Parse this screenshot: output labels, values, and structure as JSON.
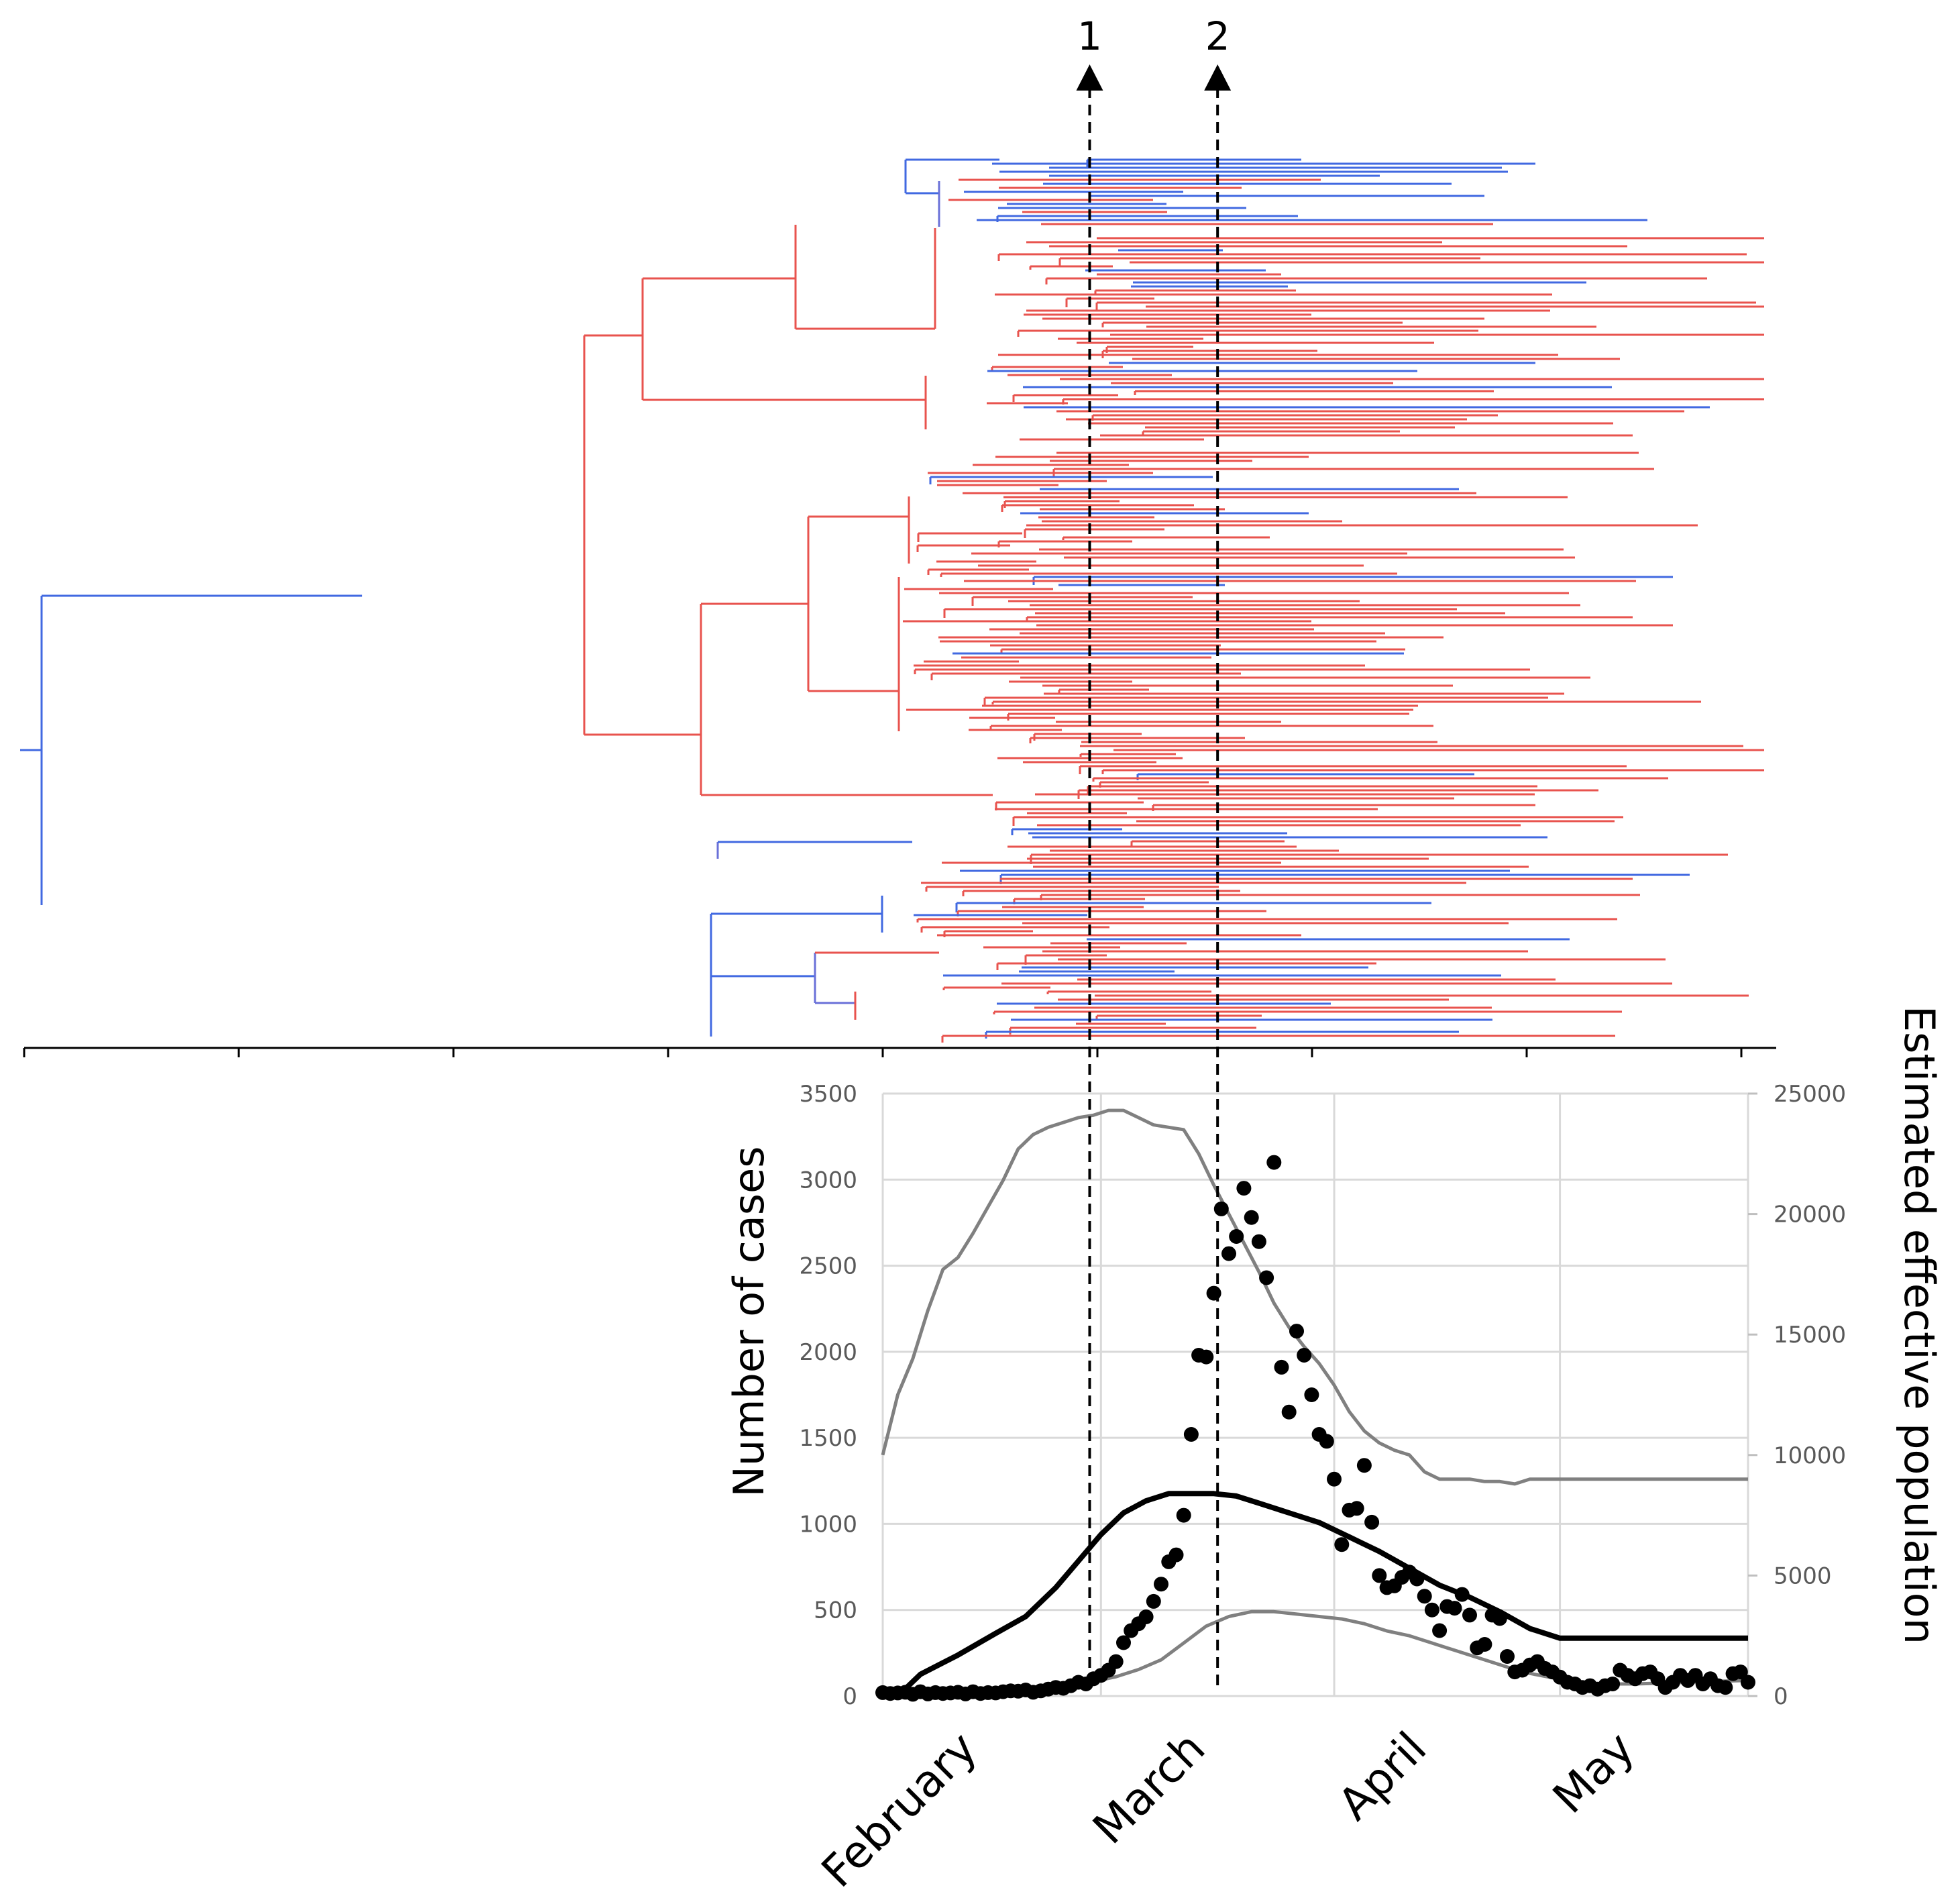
{
  "markers": [
    {
      "label": "1",
      "date": 27.5
    },
    {
      "label": "2",
      "date": 44.5
    }
  ],
  "chart_data": {
    "type": "scatter",
    "title": "",
    "xlabel": "",
    "ylabel": "Number of cases",
    "y2label": "Estimated effective population",
    "month_labels": [
      "February",
      "March",
      "April",
      "May"
    ],
    "month_starts": [
      0,
      29,
      60,
      90
    ],
    "x_unit": "days since 1 February",
    "xlim": [
      0,
      115
    ],
    "ylim": [
      0,
      3500
    ],
    "y2lim": [
      0,
      25000
    ],
    "y_ticks": [
      0,
      500,
      1000,
      1500,
      2000,
      2500,
      3000,
      3500
    ],
    "y2_ticks": [
      0,
      5000,
      10000,
      15000,
      20000,
      25000
    ],
    "grid": true,
    "series": [
      {
        "name": "Number of cases",
        "kind": "scatter",
        "axis": "left",
        "color": "#000000",
        "x": [
          0,
          1,
          2,
          3,
          4,
          5,
          6,
          7,
          8,
          9,
          10,
          11,
          12,
          13,
          14,
          15,
          16,
          17,
          18,
          19,
          20,
          21,
          22,
          23,
          24,
          25,
          26,
          27,
          28,
          29,
          30,
          31,
          32,
          33,
          34,
          35,
          36,
          37,
          38,
          39,
          40,
          41,
          42,
          43,
          44,
          45,
          46,
          47,
          48,
          49,
          50,
          51,
          52,
          53,
          54,
          55,
          56,
          57,
          58,
          59,
          60,
          61,
          62,
          63,
          64,
          65,
          66,
          67,
          68,
          69,
          70,
          71,
          72,
          73,
          74,
          75,
          76,
          77,
          78,
          79,
          80,
          81,
          82,
          83,
          84,
          85,
          86,
          87,
          88,
          89,
          90,
          91,
          92,
          93,
          94,
          95,
          96,
          97,
          98,
          99,
          100,
          101,
          102,
          103,
          104,
          105,
          106,
          107,
          108,
          109,
          110,
          111,
          112,
          113,
          114,
          115
        ],
        "values": [
          20,
          15,
          18,
          22,
          10,
          25,
          12,
          20,
          15,
          18,
          22,
          12,
          25,
          15,
          20,
          18,
          25,
          30,
          28,
          35,
          22,
          30,
          40,
          50,
          45,
          60,
          80,
          70,
          100,
          120,
          150,
          200,
          310,
          380,
          420,
          460,
          550,
          650,
          780,
          820,
          1050,
          1520,
          1980,
          1970,
          2340,
          2830,
          2570,
          2670,
          2950,
          2780,
          2640,
          2430,
          3100,
          1910,
          1650,
          2120,
          1980,
          1750,
          1520,
          1480,
          1260,
          880,
          1080,
          1090,
          1340,
          1010,
          700,
          630,
          640,
          690,
          720,
          680,
          580,
          500,
          380,
          520,
          510,
          590,
          470,
          280,
          300,
          470,
          450,
          230,
          140,
          150,
          180,
          200,
          160,
          140,
          110,
          80,
          70,
          50,
          60,
          40,
          60,
          70,
          150,
          120,
          100,
          130,
          140,
          100,
          50,
          80,
          120,
          90,
          120,
          70,
          100,
          60,
          50,
          130,
          140,
          80
        ]
      },
      {
        "name": "Estimated effective population (mean)",
        "kind": "line",
        "axis": "right",
        "color": "#000000",
        "x": [
          0,
          3,
          5,
          10,
          15,
          19,
          23,
          26,
          29,
          32,
          35,
          38,
          41,
          44,
          47,
          50,
          54,
          58,
          62,
          66,
          70,
          74,
          78,
          82,
          86,
          90,
          95,
          100,
          105,
          110,
          115
        ],
        "values": [
          150,
          300,
          900,
          1700,
          2600,
          3300,
          4500,
          5600,
          6700,
          7600,
          8100,
          8400,
          8400,
          8400,
          8300,
          8000,
          7600,
          7200,
          6600,
          6000,
          5300,
          4600,
          4100,
          3500,
          2800,
          2400,
          2400,
          2400,
          2400,
          2400,
          2400
        ]
      },
      {
        "name": "Estimated effective population (upper bound)",
        "kind": "line",
        "axis": "right",
        "color": "#808080",
        "x": [
          0,
          2,
          4,
          6,
          8,
          10,
          12,
          14,
          16,
          18,
          20,
          22,
          24,
          26,
          28,
          30,
          32,
          34,
          36,
          38,
          40,
          42,
          44,
          46,
          48,
          50,
          52,
          54,
          56,
          58,
          60,
          62,
          64,
          66,
          68,
          70,
          72,
          74,
          76,
          78,
          80,
          82,
          84,
          86,
          88,
          90,
          92,
          94,
          96,
          98,
          100,
          102,
          104,
          106,
          108,
          110,
          112,
          115
        ],
        "values": [
          10000,
          12500,
          14000,
          16000,
          17700,
          18200,
          19200,
          20300,
          21400,
          22700,
          23300,
          23600,
          23800,
          24000,
          24100,
          24300,
          24300,
          24000,
          23700,
          23600,
          23500,
          22500,
          21200,
          20000,
          18800,
          17600,
          16300,
          15300,
          14500,
          13800,
          12900,
          11800,
          11000,
          10500,
          10200,
          10000,
          9300,
          9000,
          9000,
          9000,
          8900,
          8900,
          8800,
          9000,
          9000,
          9000,
          9000,
          9000,
          9000,
          9000,
          9000,
          9000,
          9000,
          9000,
          9000,
          9000,
          9000,
          9000
        ]
      },
      {
        "name": "Estimated effective population (lower bound)",
        "kind": "line",
        "axis": "right",
        "color": "#808080",
        "x": [
          0,
          5,
          10,
          15,
          20,
          25,
          28,
          31,
          34,
          37,
          40,
          43,
          46,
          49,
          52,
          55,
          58,
          61,
          64,
          67,
          70,
          73,
          76,
          79,
          82,
          85,
          90,
          95,
          100,
          105,
          110,
          115
        ],
        "values": [
          20,
          50,
          100,
          200,
          350,
          500,
          600,
          800,
          1100,
          1500,
          2200,
          2900,
          3300,
          3500,
          3500,
          3400,
          3300,
          3200,
          3000,
          2700,
          2500,
          2200,
          1900,
          1600,
          1300,
          1000,
          700,
          500,
          500,
          550,
          600,
          650
        ]
      }
    ]
  }
}
